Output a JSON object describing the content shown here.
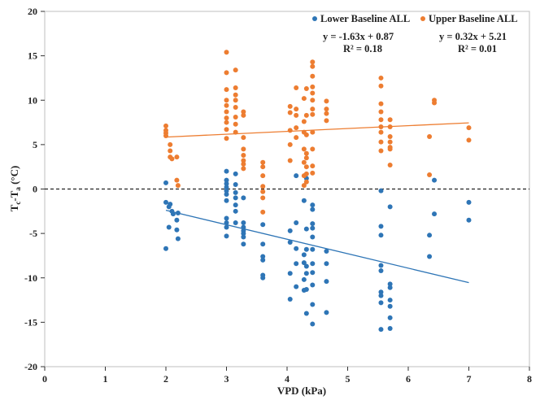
{
  "chart_data": {
    "type": "scatter",
    "xlabel": "VPD (kPa)",
    "ylabel": {
      "main": "T",
      "sub1": "c",
      "mid": "-T",
      "sub2": "a",
      "unit": " (°C)"
    },
    "xlim": [
      0,
      8
    ],
    "ylim": [
      -20,
      20
    ],
    "xticks": [
      "0",
      "1",
      "2",
      "3",
      "4",
      "5",
      "6",
      "7",
      "8"
    ],
    "yticks": [
      "-20",
      "-15",
      "-10",
      "-5",
      "0",
      "5",
      "10",
      "15",
      "20"
    ],
    "reference_line_y": 0,
    "grid": false,
    "legend_position": "top-right",
    "series": [
      {
        "name": "Lower Baseline ALL",
        "color": "#2e75b6",
        "equation": "y = -1.63x + 0.87",
        "r2": "R² = 0.18",
        "trend": {
          "slope": -1.63,
          "intercept": 0.87,
          "x_range": [
            2,
            7
          ]
        },
        "points": [
          [
            2.0,
            0.7
          ],
          [
            2.0,
            -1.5
          ],
          [
            2.0,
            -6.7
          ],
          [
            2.05,
            -2.0
          ],
          [
            2.05,
            -4.3
          ],
          [
            2.07,
            -1.7
          ],
          [
            2.1,
            -2.5
          ],
          [
            2.12,
            -2.8
          ],
          [
            2.18,
            -3.5
          ],
          [
            2.18,
            -4.6
          ],
          [
            2.2,
            -5.6
          ],
          [
            2.2,
            -2.7
          ],
          [
            3.0,
            2.0
          ],
          [
            3.0,
            1.0
          ],
          [
            3.0,
            0.6
          ],
          [
            3.0,
            0.2
          ],
          [
            3.0,
            -0.2
          ],
          [
            3.0,
            -0.6
          ],
          [
            3.0,
            -1.3
          ],
          [
            3.0,
            -3.3
          ],
          [
            3.0,
            -3.8
          ],
          [
            3.0,
            -4.3
          ],
          [
            3.0,
            -5.3
          ],
          [
            3.15,
            1.7
          ],
          [
            3.15,
            0.5
          ],
          [
            3.15,
            -0.4
          ],
          [
            3.15,
            -1.0
          ],
          [
            3.15,
            -1.8
          ],
          [
            3.15,
            -2.5
          ],
          [
            3.15,
            -3.8
          ],
          [
            3.28,
            -1.0
          ],
          [
            3.28,
            -3.8
          ],
          [
            3.28,
            -4.3
          ],
          [
            3.28,
            -4.7
          ],
          [
            3.28,
            -5.0
          ],
          [
            3.28,
            -5.4
          ],
          [
            3.28,
            -6.2
          ],
          [
            3.6,
            -4.0
          ],
          [
            3.6,
            -6.2
          ],
          [
            3.6,
            -7.6
          ],
          [
            3.6,
            -8.0
          ],
          [
            3.6,
            -9.7
          ],
          [
            3.6,
            -10.0
          ],
          [
            4.05,
            -4.7
          ],
          [
            4.05,
            -6.0
          ],
          [
            4.05,
            -9.5
          ],
          [
            4.05,
            -12.4
          ],
          [
            4.15,
            1.5
          ],
          [
            4.15,
            -3.8
          ],
          [
            4.15,
            -6.7
          ],
          [
            4.15,
            -8.4
          ],
          [
            4.15,
            -11.0
          ],
          [
            4.28,
            -1.3
          ],
          [
            4.28,
            -7.4
          ],
          [
            4.28,
            -8.3
          ],
          [
            4.28,
            -10.2
          ],
          [
            4.28,
            -11.4
          ],
          [
            4.32,
            1.2
          ],
          [
            4.32,
            -4.5
          ],
          [
            4.32,
            -6.8
          ],
          [
            4.32,
            -8.7
          ],
          [
            4.32,
            -9.5
          ],
          [
            4.32,
            -11.3
          ],
          [
            4.32,
            -14.0
          ],
          [
            4.42,
            -1.8
          ],
          [
            4.42,
            -2.3
          ],
          [
            4.42,
            -3.9
          ],
          [
            4.42,
            -4.4
          ],
          [
            4.42,
            -5.4
          ],
          [
            4.42,
            -6.8
          ],
          [
            4.42,
            -8.4
          ],
          [
            4.42,
            -9.4
          ],
          [
            4.42,
            -10.8
          ],
          [
            4.42,
            -13.0
          ],
          [
            4.42,
            -15.2
          ],
          [
            4.65,
            -7.0
          ],
          [
            4.65,
            -8.4
          ],
          [
            4.65,
            -10.4
          ],
          [
            4.65,
            -13.9
          ],
          [
            5.55,
            -0.2
          ],
          [
            5.55,
            -4.2
          ],
          [
            5.55,
            -5.2
          ],
          [
            5.55,
            -8.6
          ],
          [
            5.55,
            -9.2
          ],
          [
            5.55,
            -11.6
          ],
          [
            5.55,
            -12.0
          ],
          [
            5.55,
            -12.8
          ],
          [
            5.55,
            -15.8
          ],
          [
            5.7,
            -2.0
          ],
          [
            5.7,
            -10.7
          ],
          [
            5.7,
            -11.1
          ],
          [
            5.7,
            -12.5
          ],
          [
            5.7,
            -13.2
          ],
          [
            5.7,
            -14.5
          ],
          [
            5.7,
            -15.7
          ],
          [
            6.35,
            -5.2
          ],
          [
            6.35,
            -7.6
          ],
          [
            6.43,
            1.0
          ],
          [
            6.43,
            -2.8
          ],
          [
            7.0,
            -1.5
          ],
          [
            7.0,
            -3.5
          ]
        ]
      },
      {
        "name": "Upper Baseline ALL",
        "color": "#ed7d31",
        "equation": "y = 0.32x + 5.21",
        "r2": "R² = 0.01",
        "trend": {
          "slope": 0.32,
          "intercept": 5.21,
          "x_range": [
            2,
            7
          ]
        },
        "points": [
          [
            2.0,
            7.1
          ],
          [
            2.0,
            6.6
          ],
          [
            2.0,
            6.3
          ],
          [
            2.0,
            6.0
          ],
          [
            2.07,
            5.0
          ],
          [
            2.07,
            4.3
          ],
          [
            2.07,
            3.6
          ],
          [
            2.1,
            3.4
          ],
          [
            2.18,
            3.6
          ],
          [
            2.18,
            1.0
          ],
          [
            2.2,
            0.4
          ],
          [
            3.0,
            15.4
          ],
          [
            3.0,
            13.1
          ],
          [
            3.0,
            11.2
          ],
          [
            3.0,
            10.0
          ],
          [
            3.0,
            9.4
          ],
          [
            3.0,
            8.7
          ],
          [
            3.0,
            8.0
          ],
          [
            3.0,
            7.5
          ],
          [
            3.0,
            6.7
          ],
          [
            3.0,
            5.7
          ],
          [
            3.15,
            13.4
          ],
          [
            3.15,
            11.4
          ],
          [
            3.15,
            10.6
          ],
          [
            3.15,
            10.0
          ],
          [
            3.15,
            9.2
          ],
          [
            3.15,
            8.1
          ],
          [
            3.15,
            7.3
          ],
          [
            3.15,
            6.4
          ],
          [
            3.28,
            8.7
          ],
          [
            3.28,
            8.3
          ],
          [
            3.28,
            5.8
          ],
          [
            3.28,
            4.5
          ],
          [
            3.28,
            3.8
          ],
          [
            3.28,
            3.2
          ],
          [
            3.28,
            2.8
          ],
          [
            3.28,
            2.3
          ],
          [
            3.6,
            3.0
          ],
          [
            3.6,
            2.5
          ],
          [
            3.6,
            1.5
          ],
          [
            3.6,
            0.3
          ],
          [
            3.6,
            -0.3
          ],
          [
            3.6,
            -1.0
          ],
          [
            3.6,
            -2.6
          ],
          [
            4.05,
            9.3
          ],
          [
            4.05,
            8.6
          ],
          [
            4.05,
            6.6
          ],
          [
            4.05,
            5.0
          ],
          [
            4.05,
            3.2
          ],
          [
            4.15,
            11.4
          ],
          [
            4.15,
            9.0
          ],
          [
            4.15,
            8.3
          ],
          [
            4.15,
            6.9
          ],
          [
            4.15,
            5.8
          ],
          [
            4.28,
            10.2
          ],
          [
            4.28,
            7.6
          ],
          [
            4.28,
            6.4
          ],
          [
            4.28,
            4.5
          ],
          [
            4.28,
            3.0
          ],
          [
            4.28,
            1.5
          ],
          [
            4.28,
            0.4
          ],
          [
            4.32,
            11.3
          ],
          [
            4.32,
            8.3
          ],
          [
            4.32,
            6.1
          ],
          [
            4.32,
            4.0
          ],
          [
            4.32,
            3.5
          ],
          [
            4.32,
            2.5
          ],
          [
            4.32,
            1.7
          ],
          [
            4.32,
            0.8
          ],
          [
            4.42,
            14.3
          ],
          [
            4.42,
            13.8
          ],
          [
            4.42,
            12.7
          ],
          [
            4.42,
            11.5
          ],
          [
            4.42,
            10.8
          ],
          [
            4.42,
            10.0
          ],
          [
            4.42,
            9.0
          ],
          [
            4.42,
            8.4
          ],
          [
            4.42,
            6.4
          ],
          [
            4.42,
            4.5
          ],
          [
            4.42,
            2.6
          ],
          [
            4.42,
            1.8
          ],
          [
            4.65,
            9.9
          ],
          [
            4.65,
            9.0
          ],
          [
            4.65,
            8.5
          ],
          [
            4.65,
            7.7
          ],
          [
            5.55,
            12.5
          ],
          [
            5.55,
            11.6
          ],
          [
            5.55,
            9.6
          ],
          [
            5.55,
            8.7
          ],
          [
            5.55,
            7.8
          ],
          [
            5.55,
            7.0
          ],
          [
            5.55,
            6.4
          ],
          [
            5.55,
            5.3
          ],
          [
            5.55,
            4.3
          ],
          [
            5.7,
            7.8
          ],
          [
            5.7,
            7.0
          ],
          [
            5.7,
            5.9
          ],
          [
            5.7,
            5.3
          ],
          [
            5.7,
            4.7
          ],
          [
            5.7,
            4.5
          ],
          [
            5.7,
            2.7
          ],
          [
            6.35,
            5.9
          ],
          [
            6.35,
            1.6
          ],
          [
            6.43,
            10.0
          ],
          [
            6.43,
            9.7
          ],
          [
            7.0,
            6.9
          ],
          [
            7.0,
            5.5
          ]
        ]
      }
    ]
  }
}
